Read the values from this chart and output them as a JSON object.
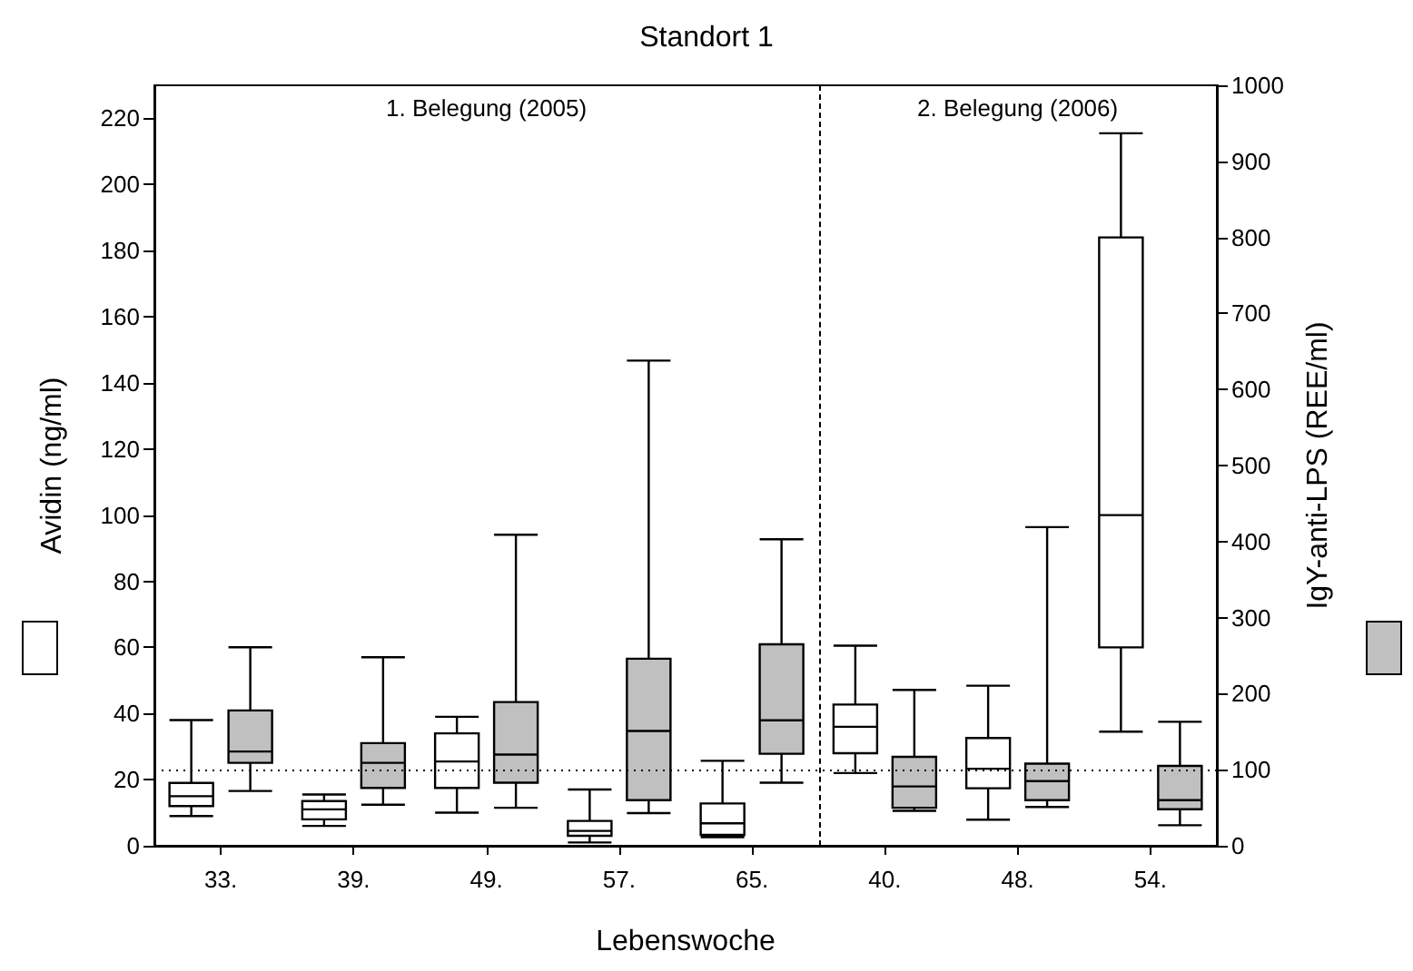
{
  "chart_data": {
    "type": "box",
    "title": "Standort 1",
    "xlabel": "Lebenswoche",
    "ylabel": "Avidin (ng/ml)",
    "y2label": "IgY-anti-LPS (REE/ml)",
    "categories": [
      "33.",
      "39.",
      "49.",
      "57.",
      "65.",
      "40.",
      "48.",
      "54."
    ],
    "ylim": [
      0,
      230
    ],
    "yticks": [
      0,
      20,
      40,
      60,
      80,
      100,
      120,
      140,
      160,
      180,
      200,
      220
    ],
    "y2lim": [
      0,
      1000
    ],
    "y2ticks": [
      0,
      100,
      200,
      300,
      400,
      500,
      600,
      700,
      800,
      900,
      1000
    ],
    "series": [
      {
        "color": "#ffffff",
        "boxes": [
          {
            "low": 9,
            "q1": 12,
            "median": 15,
            "q3": 19,
            "high": 38
          },
          {
            "low": 6,
            "q1": 8,
            "median": 11,
            "q3": 13.5,
            "high": 15.5
          },
          {
            "low": 10,
            "q1": 17.5,
            "median": 25.5,
            "q3": 34,
            "high": 39
          },
          {
            "low": 1,
            "q1": 3,
            "median": 4.5,
            "q3": 7.5,
            "high": 17
          },
          {
            "low": 2.6,
            "q1": 3.3,
            "median": 6.8,
            "q3": 12.8,
            "high": 25.7
          },
          {
            "low": 22,
            "q1": 28,
            "median": 36,
            "q3": 42.7,
            "high": 60.5
          },
          {
            "low": 7.9,
            "q1": 17.4,
            "median": 23.3,
            "q3": 32.6,
            "high": 48.4
          },
          {
            "low": 34.5,
            "q1": 60,
            "median": 100,
            "q3": 184,
            "high": 215.5
          }
        ]
      },
      {
        "color": "#c0c0c0",
        "axis": "y2",
        "boxes": [
          {
            "low": 72,
            "q1": 109,
            "median": 124,
            "q3": 178,
            "high": 261
          },
          {
            "low": 54,
            "q1": 76,
            "median": 109,
            "q3": 135,
            "high": 248
          },
          {
            "low": 50,
            "q1": 83,
            "median": 120,
            "q3": 189,
            "high": 409
          },
          {
            "low": 43,
            "q1": 60,
            "median": 151,
            "q3": 246,
            "high": 638
          },
          {
            "low": 83,
            "q1": 121,
            "median": 165,
            "q3": 265,
            "high": 403
          },
          {
            "low": 46,
            "q1": 50,
            "median": 78,
            "q3": 117,
            "high": 205
          },
          {
            "low": 51,
            "q1": 60,
            "median": 85,
            "q3": 108,
            "high": 419
          },
          {
            "low": 27,
            "q1": 48,
            "median": 60,
            "q3": 105,
            "high": 163
          }
        ]
      }
    ],
    "ref_lines": [
      {
        "axis": "y2",
        "value": 100,
        "line_style": "dotted"
      }
    ],
    "annotations": [
      "1. Belegung (2005)",
      "2. Belegung (2006)"
    ],
    "grid": false
  }
}
